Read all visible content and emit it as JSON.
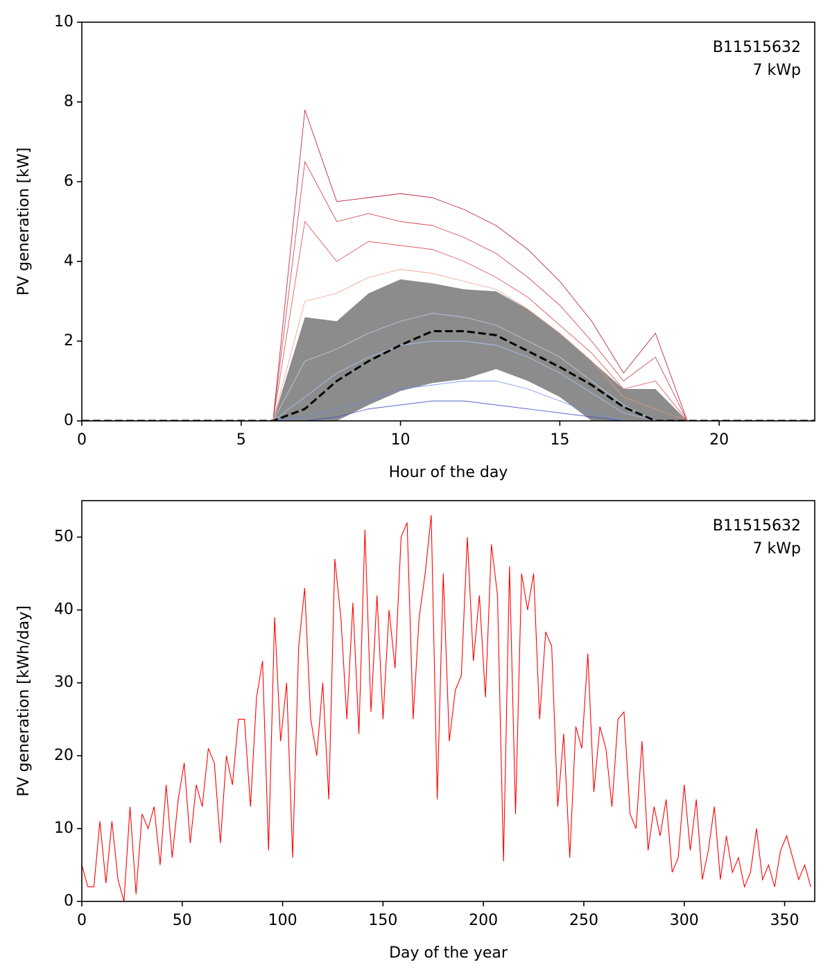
{
  "chart_data": [
    {
      "type": "line",
      "xlabel": "Hour of the day",
      "ylabel": "PV generation [kW]",
      "annotation": [
        "B11515632",
        "7 kWp"
      ],
      "x": [
        0,
        1,
        2,
        3,
        4,
        5,
        6,
        7,
        8,
        9,
        10,
        11,
        12,
        13,
        14,
        15,
        16,
        17,
        18,
        19,
        20,
        21,
        22,
        23
      ],
      "xlim": [
        0,
        23
      ],
      "xticks": [
        0,
        5,
        10,
        15,
        20
      ],
      "ylim": [
        0,
        10
      ],
      "yticks": [
        0,
        2,
        4,
        6,
        8,
        10
      ],
      "band": {
        "color": "#808080",
        "upper": [
          0,
          0,
          0,
          0,
          0,
          0,
          0,
          2.6,
          2.5,
          3.2,
          3.55,
          3.45,
          3.3,
          3.25,
          2.8,
          2.2,
          1.5,
          0.8,
          0.8,
          0,
          0,
          0,
          0,
          0
        ],
        "lower": [
          0,
          0,
          0,
          0,
          0,
          0,
          0,
          0,
          0,
          0.4,
          0.75,
          0.95,
          1.05,
          1.3,
          1.0,
          0.6,
          0,
          0,
          0,
          0,
          0,
          0,
          0,
          0
        ]
      },
      "series": [
        {
          "color": "#b40426",
          "values": [
            0,
            0,
            0,
            0,
            0,
            0,
            0,
            7.8,
            5.5,
            5.6,
            5.7,
            5.6,
            5.3,
            4.9,
            4.3,
            3.5,
            2.5,
            1.2,
            2.2,
            0,
            0,
            0,
            0,
            0
          ]
        },
        {
          "color": "#c82d32",
          "values": [
            0,
            0,
            0,
            0,
            0,
            0,
            0,
            6.5,
            5.0,
            5.2,
            5.0,
            4.9,
            4.6,
            4.2,
            3.6,
            2.9,
            2.0,
            1.0,
            1.6,
            0,
            0,
            0,
            0,
            0
          ]
        },
        {
          "color": "#d6404a",
          "values": [
            0,
            0,
            0,
            0,
            0,
            0,
            0,
            5.0,
            4.0,
            4.5,
            4.4,
            4.3,
            4.0,
            3.6,
            3.1,
            2.4,
            1.7,
            0.8,
            1.0,
            0,
            0,
            0,
            0,
            0
          ]
        },
        {
          "color": "#f4987a",
          "values": [
            0,
            0,
            0,
            0,
            0,
            0,
            0,
            3.0,
            3.2,
            3.6,
            3.8,
            3.7,
            3.5,
            3.3,
            2.8,
            2.2,
            1.5,
            0.6,
            0.3,
            0,
            0,
            0,
            0,
            0
          ]
        },
        {
          "color": "#c5d6f2",
          "values": [
            0,
            0,
            0,
            0,
            0,
            0,
            0,
            1.5,
            1.8,
            2.2,
            2.5,
            2.7,
            2.6,
            2.4,
            2.0,
            1.6,
            1.0,
            0.4,
            0,
            0,
            0,
            0,
            0,
            0
          ]
        },
        {
          "color": "#aec9fc",
          "values": [
            0,
            0,
            0,
            0,
            0,
            0,
            0,
            0.6,
            1.2,
            1.6,
            1.9,
            2.0,
            2.0,
            1.9,
            1.6,
            1.2,
            0.7,
            0.2,
            0,
            0,
            0,
            0,
            0,
            0
          ]
        },
        {
          "color": "#6788ee",
          "values": [
            0,
            0,
            0,
            0,
            0,
            0,
            0,
            0.1,
            0.3,
            0.5,
            0.8,
            0.9,
            1.0,
            1.0,
            0.8,
            0.5,
            0.2,
            0,
            0,
            0,
            0,
            0,
            0,
            0
          ]
        },
        {
          "color": "#3b4cc0",
          "values": [
            0,
            0,
            0,
            0,
            0,
            0,
            0,
            0,
            0.1,
            0.3,
            0.4,
            0.5,
            0.5,
            0.4,
            0.3,
            0.2,
            0.1,
            0,
            0,
            0,
            0,
            0,
            0,
            0
          ]
        }
      ],
      "mean": {
        "color": "#000000",
        "values": [
          0,
          0,
          0,
          0,
          0,
          0,
          0,
          0.3,
          1.0,
          1.5,
          1.9,
          2.25,
          2.25,
          2.15,
          1.75,
          1.35,
          0.9,
          0.35,
          0,
          0,
          0,
          0,
          0,
          0
        ]
      }
    },
    {
      "type": "line",
      "xlabel": "Day of the year",
      "ylabel": "PV generation [kWh/day]",
      "annotation": [
        "B11515632",
        "7 kWp"
      ],
      "xlim": [
        0,
        365
      ],
      "xticks": [
        0,
        50,
        100,
        150,
        200,
        250,
        300,
        350
      ],
      "ylim": [
        0,
        55
      ],
      "yticks": [
        0,
        10,
        20,
        30,
        40,
        50
      ],
      "x": [
        0,
        3,
        6,
        9,
        12,
        15,
        18,
        21,
        24,
        27,
        30,
        33,
        36,
        39,
        42,
        45,
        48,
        51,
        54,
        57,
        60,
        63,
        66,
        69,
        72,
        75,
        78,
        81,
        84,
        87,
        90,
        93,
        96,
        99,
        102,
        105,
        108,
        111,
        114,
        117,
        120,
        123,
        126,
        129,
        132,
        135,
        138,
        141,
        144,
        147,
        150,
        153,
        156,
        159,
        162,
        165,
        168,
        171,
        174,
        177,
        180,
        183,
        186,
        189,
        192,
        195,
        198,
        201,
        204,
        207,
        210,
        213,
        216,
        219,
        222,
        225,
        228,
        231,
        234,
        237,
        240,
        243,
        246,
        249,
        252,
        255,
        258,
        261,
        264,
        267,
        270,
        273,
        276,
        279,
        282,
        285,
        288,
        291,
        294,
        297,
        300,
        303,
        306,
        309,
        312,
        315,
        318,
        321,
        324,
        327,
        330,
        333,
        336,
        339,
        342,
        345,
        348,
        351,
        354,
        357,
        360,
        363
      ],
      "series": [
        {
          "color": "#ff0000",
          "values": [
            5,
            2,
            2,
            11,
            2.5,
            11,
            3,
            0,
            13,
            1,
            12,
            10,
            13,
            5,
            16,
            6,
            14,
            19,
            8,
            16,
            13,
            21,
            19,
            8,
            20,
            16,
            25,
            25,
            13,
            28,
            33,
            7,
            39,
            22,
            30,
            6,
            35,
            43,
            25,
            20,
            30,
            14,
            47,
            39,
            25,
            41,
            23,
            51,
            26,
            42,
            25,
            40,
            32,
            50,
            52,
            25,
            39,
            45,
            53,
            14,
            45,
            22,
            29,
            31,
            50,
            33,
            42,
            28,
            49,
            42,
            5.5,
            46,
            12,
            45,
            40,
            45,
            25,
            37,
            35,
            13,
            23,
            6,
            24,
            21,
            34,
            15,
            24,
            21,
            13,
            25,
            26,
            12,
            10,
            22,
            7,
            13,
            9,
            14,
            4,
            6,
            16,
            7,
            14,
            3,
            7,
            13,
            3,
            9,
            4,
            6,
            2,
            4,
            10,
            3,
            5,
            2,
            7,
            9,
            6,
            3,
            5,
            2
          ]
        }
      ]
    }
  ]
}
